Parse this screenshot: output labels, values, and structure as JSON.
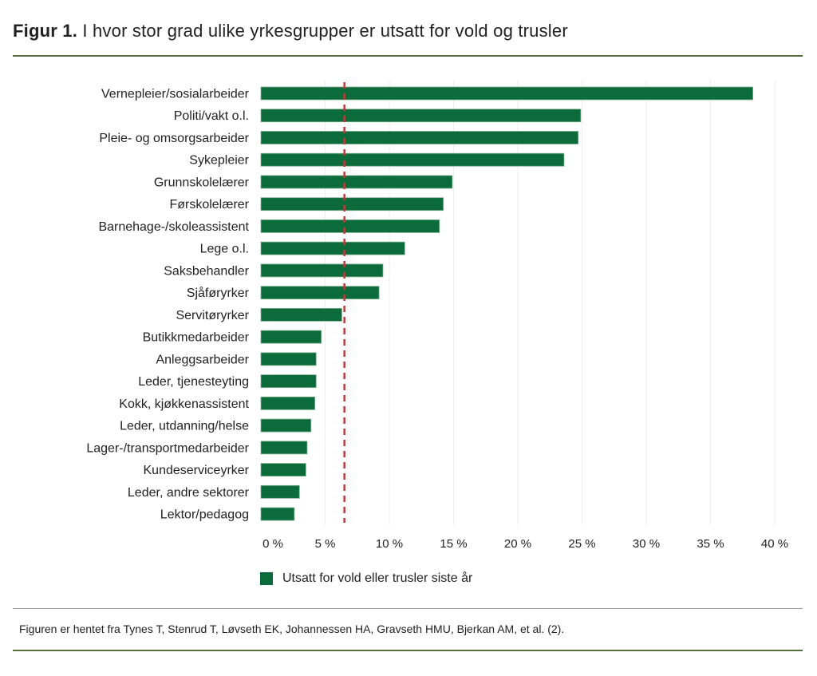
{
  "title": {
    "prefix": "Figur 1.",
    "text": " I hvor stor grad ulike yrkesgrupper er utsatt for vold og trusler"
  },
  "source": "Figuren er hentet fra Tynes T, Stenrud T, Løvseth EK, Johannessen HA, Gravseth HMU, Bjerkan AM, et al. (2).",
  "chart_data": {
    "type": "bar",
    "orientation": "horizontal",
    "categories": [
      "Vernepleier/sosialarbeider",
      "Politi/vakt o.l.",
      "Pleie- og omsorgsarbeider",
      "Sykepleier",
      "Grunnskolelærer",
      "Førskolelærer",
      "Barnehage-/skoleassistent",
      "Lege o.l.",
      "Saksbehandler",
      "Sjåføryrker",
      "Servitøryrker",
      "Butikkmedarbeider",
      "Anleggsarbeider",
      "Leder, tjenesteyting",
      "Kokk, kjøkkenassistent",
      "Leder, utdanning/helse",
      "Lager-/transportmedarbeider",
      "Kundeserviceyrker",
      "Leder, andre sektorer",
      "Lektor/pedagog"
    ],
    "series": [
      {
        "name": "Utsatt for vold eller trusler siste år",
        "values": [
          38.3,
          24.9,
          24.7,
          23.6,
          14.9,
          14.2,
          13.9,
          11.2,
          9.5,
          9.2,
          6.3,
          4.7,
          4.3,
          4.3,
          4.2,
          3.9,
          3.6,
          3.5,
          3.0,
          2.6
        ]
      }
    ],
    "reference_line": 6.5,
    "xlim": [
      0,
      40
    ],
    "xticks": [
      0,
      5,
      10,
      15,
      20,
      25,
      30,
      35,
      40
    ],
    "xtick_labels": [
      "0 %",
      "5 %",
      "10 %",
      "15 %",
      "20 %",
      "25 %",
      "30 %",
      "35 %",
      "40 %"
    ],
    "legend_position": "bottom",
    "colors": {
      "bar": "#0b6b3a",
      "reference_line": "#c0393b",
      "rule": "#55703a"
    }
  }
}
